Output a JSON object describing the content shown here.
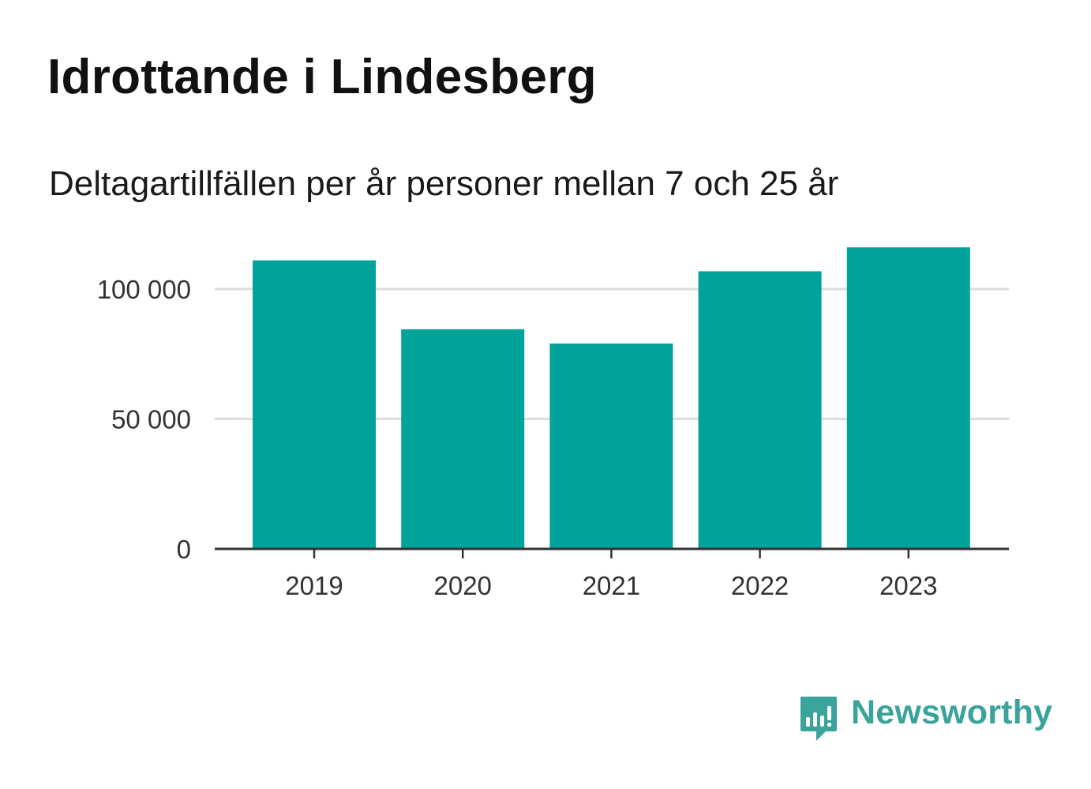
{
  "chart_data": {
    "type": "bar",
    "title": "Idrottande i Lindesberg",
    "subtitle": "Deltagartillfällen per år personer mellan 7 och 25 år",
    "categories": [
      "2019",
      "2020",
      "2021",
      "2022",
      "2023"
    ],
    "values": [
      111000,
      84500,
      79000,
      106800,
      116000
    ],
    "ylim": [
      0,
      120000
    ],
    "yticks": [
      0,
      50000,
      100000
    ],
    "ytick_labels": [
      "0",
      "50 000",
      "100 000"
    ],
    "grid": true,
    "bar_color": "#00a39a"
  },
  "brand": {
    "name": "Newsworthy",
    "color": "#3aa39b"
  }
}
